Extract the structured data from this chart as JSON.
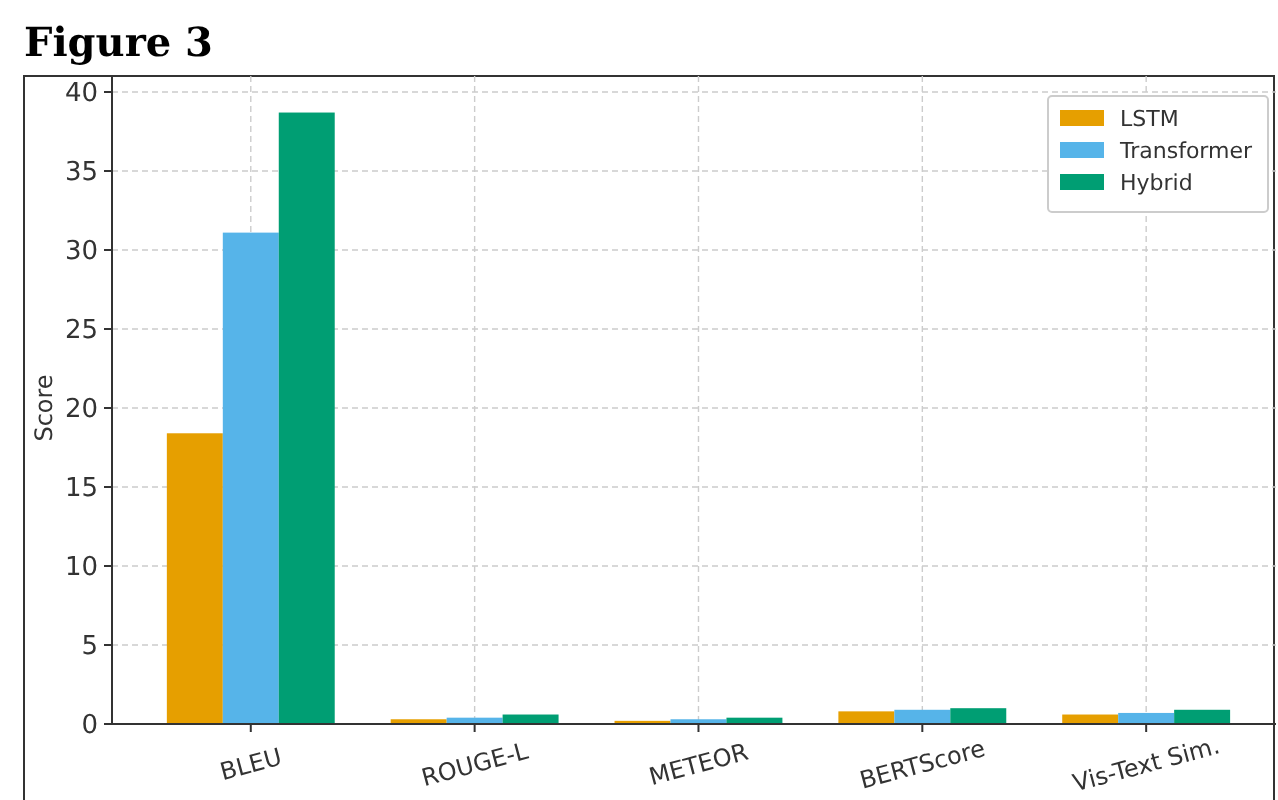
{
  "chart_data": {
    "type": "bar",
    "title": "Figure 3",
    "ylabel": "Score",
    "categories": [
      "BLEU",
      "ROUGE-L",
      "METEOR",
      "BERTScore",
      "Vis-Text Sim."
    ],
    "series": [
      {
        "name": "LSTM",
        "color": "#e69f00",
        "values": [
          18.4,
          0.3,
          0.2,
          0.8,
          0.6
        ]
      },
      {
        "name": "Transformer",
        "color": "#56b4e9",
        "values": [
          31.1,
          0.4,
          0.3,
          0.9,
          0.7
        ]
      },
      {
        "name": "Hybrid",
        "color": "#009e73",
        "values": [
          38.7,
          0.6,
          0.4,
          1.0,
          0.9
        ]
      }
    ],
    "ylim": [
      0,
      40
    ],
    "yticks": [
      0,
      5,
      10,
      15,
      20,
      25,
      30,
      35,
      40
    ],
    "grid": true,
    "legend": "top right"
  }
}
